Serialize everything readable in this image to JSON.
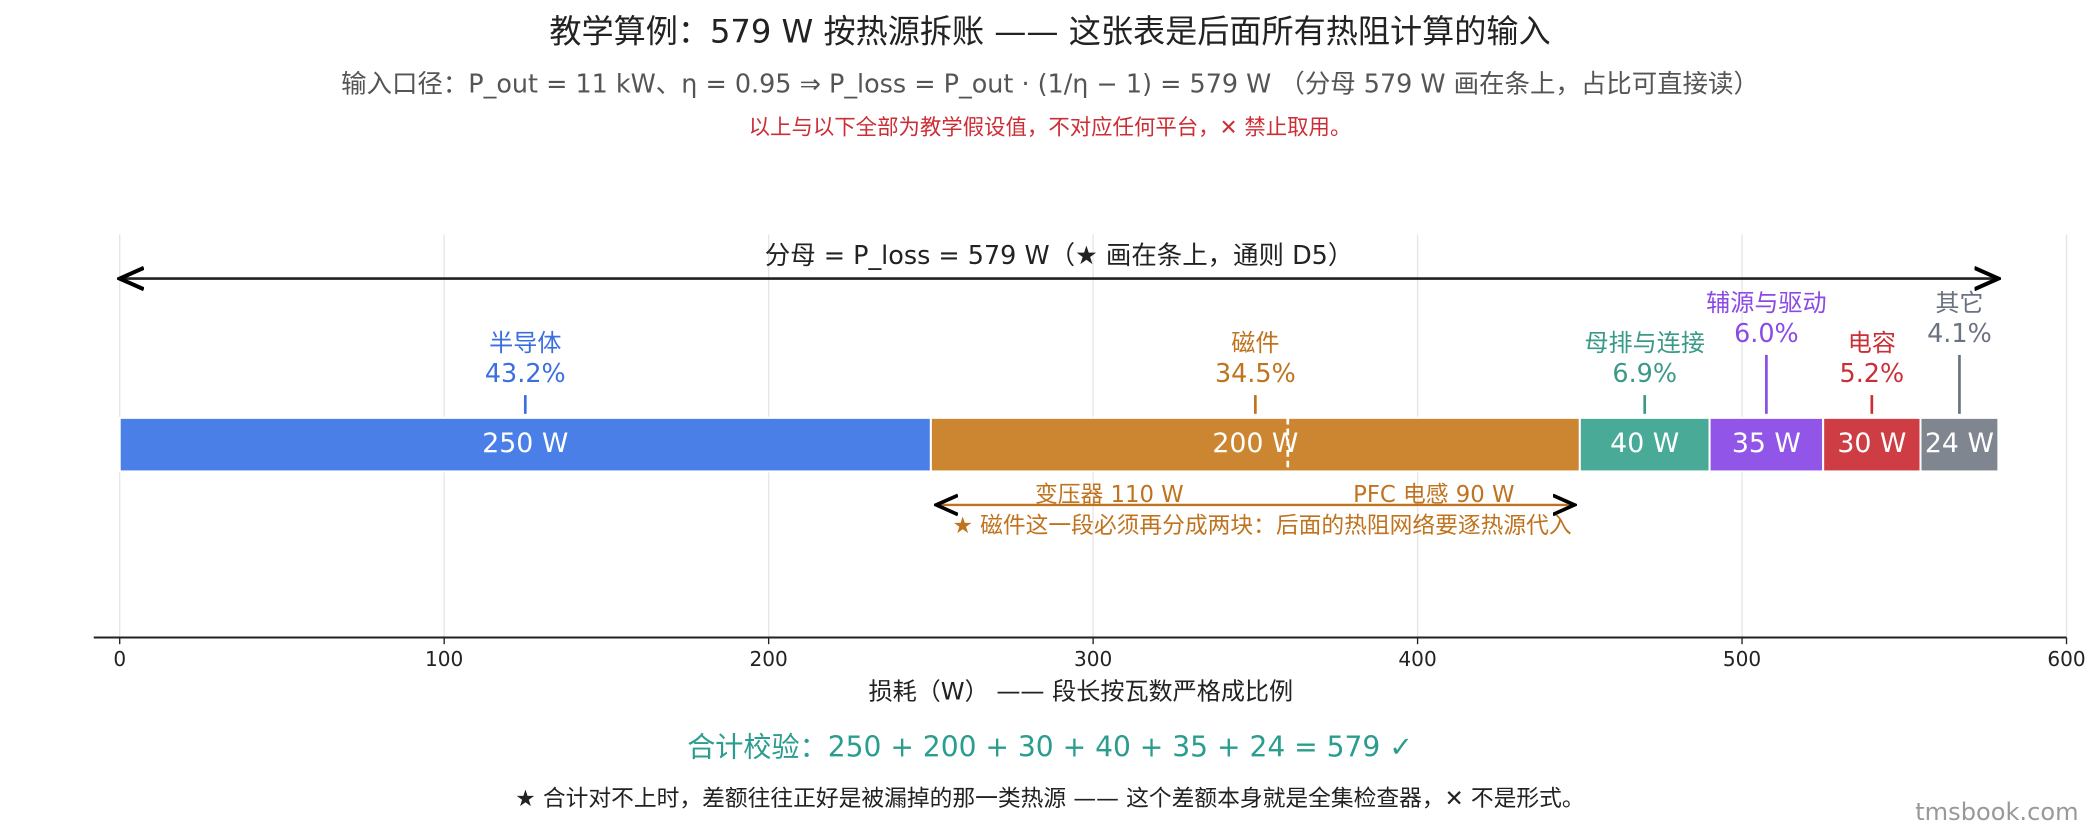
{
  "chart_data": {
    "type": "stacked-hbar",
    "title": "教学算例：579 W 按热源拆账 —— 这张表是后面所有热阻计算的输入",
    "subtitle": "输入口径：P_out = 11 kW、η = 0.95 ⇒ P_loss = P_out · (1/η − 1) = 579 W （分母 579 W 画在条上，占比可直接读）",
    "warning": "以上与以下全部为教学假设值，不对应任何平台，✕ 禁止取用。",
    "span": {
      "label": "分母 = P_loss = 579 W（★ 画在条上，通则 D5）",
      "value": 579
    },
    "series": [
      {
        "name": "半导体",
        "color": "#4a7fe8",
        "label_color": "#3b6fe0",
        "values": [
          250
        ],
        "value_labels": [
          "250 W"
        ],
        "percent_label": "43.2%"
      },
      {
        "name": "磁件",
        "color": "#cc8530",
        "label_color": "#c0731f",
        "values": [
          200
        ],
        "value_labels": [
          "200 W"
        ],
        "percent_label": "34.5%"
      },
      {
        "name": "母排与连接",
        "color": "#4aaa98",
        "label_color": "#3a9a88",
        "values": [
          40
        ],
        "value_labels": [
          "40 W"
        ],
        "percent_label": "6.9%"
      },
      {
        "name": "辅源与驱动",
        "color": "#9155e8",
        "label_color": "#8a4ae6",
        "values": [
          35
        ],
        "value_labels": [
          "35 W"
        ],
        "percent_label": "6.0%"
      },
      {
        "name": "电容",
        "color": "#cf3d44",
        "label_color": "#cc2e36",
        "values": [
          30
        ],
        "value_labels": [
          "30 W"
        ],
        "percent_label": "5.2%"
      },
      {
        "name": "其它",
        "color": "#7f8690",
        "label_color": "#6b7280",
        "values": [
          24
        ],
        "value_labels": [
          "24 W"
        ],
        "percent_label": "4.1%"
      }
    ],
    "sub_segments": [
      {
        "label": "变压器 110 W",
        "value": 110
      },
      {
        "label": "PFC 电感 90 W",
        "value": 90
      }
    ],
    "sub_note": "★ 磁件这一段必须再分成两块：后面的热阻网络要逐热源代入",
    "xlim": [
      -8,
      600
    ],
    "xticks": [
      0,
      100,
      200,
      300,
      400,
      500,
      600
    ],
    "grid": true,
    "xlabel": "损耗（W） —— 段长按瓦数严格成比例",
    "check": "合计校验：250 + 200 + 30 + 40 + 35 + 24 = 579 ✓",
    "footnote": "★ 合计对不上时，差额往往正好是被漏掉的那一类热源 —— 这个差额本身就是全集检查器，✕ 不是形式。",
    "watermark": "tmsbook.com"
  }
}
